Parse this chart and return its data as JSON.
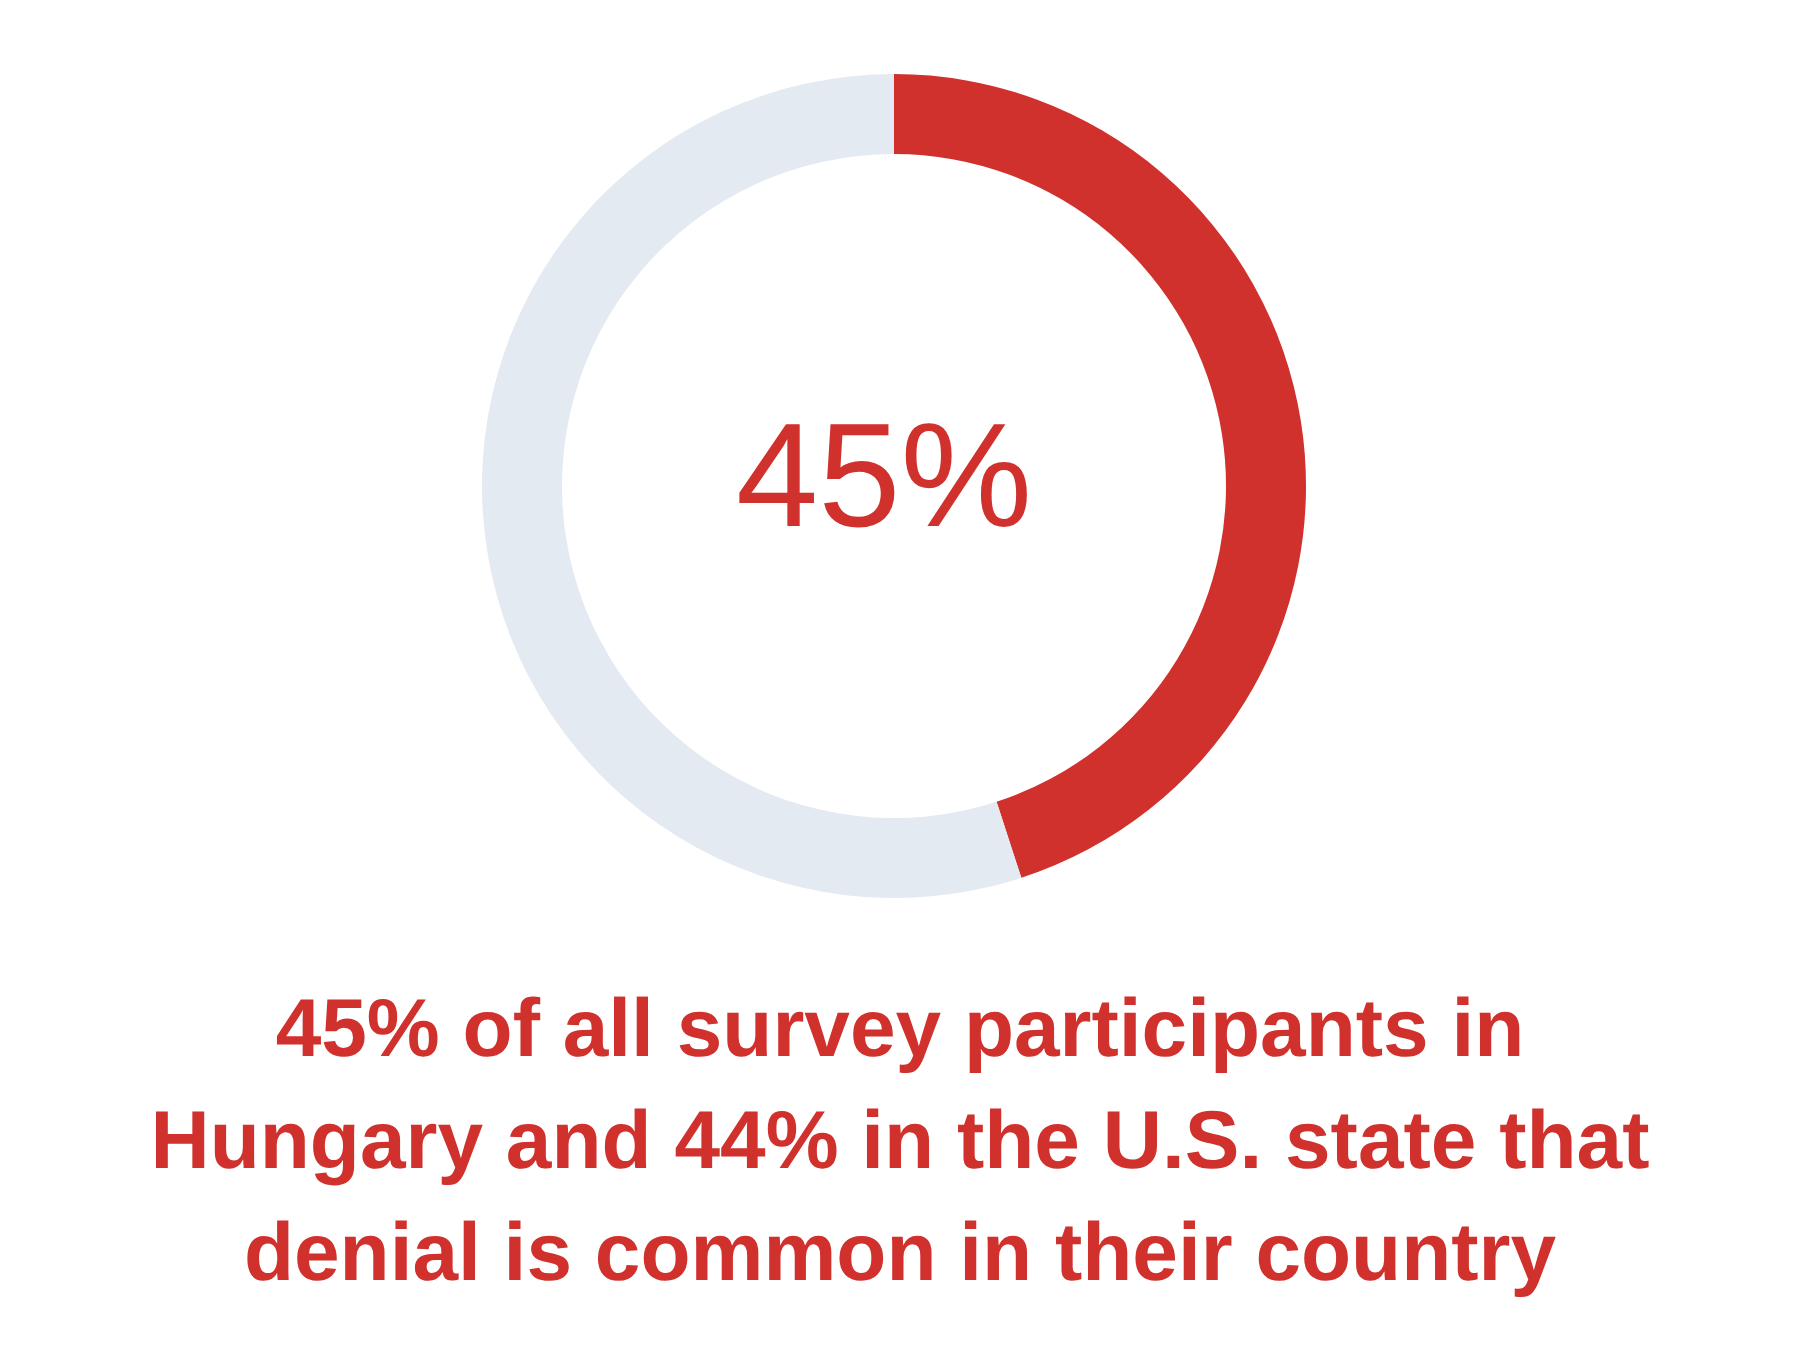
{
  "chart_data": {
    "type": "donut",
    "title": "45% of all survey participants in Hungary and 44% in the U.S. state that denial is common in their country",
    "categories": [
      null,
      null
    ],
    "values": [
      45,
      55
    ],
    "colors": [
      "#d0312d",
      "#e4eaf2"
    ],
    "annotations": [
      "45%"
    ]
  }
}
